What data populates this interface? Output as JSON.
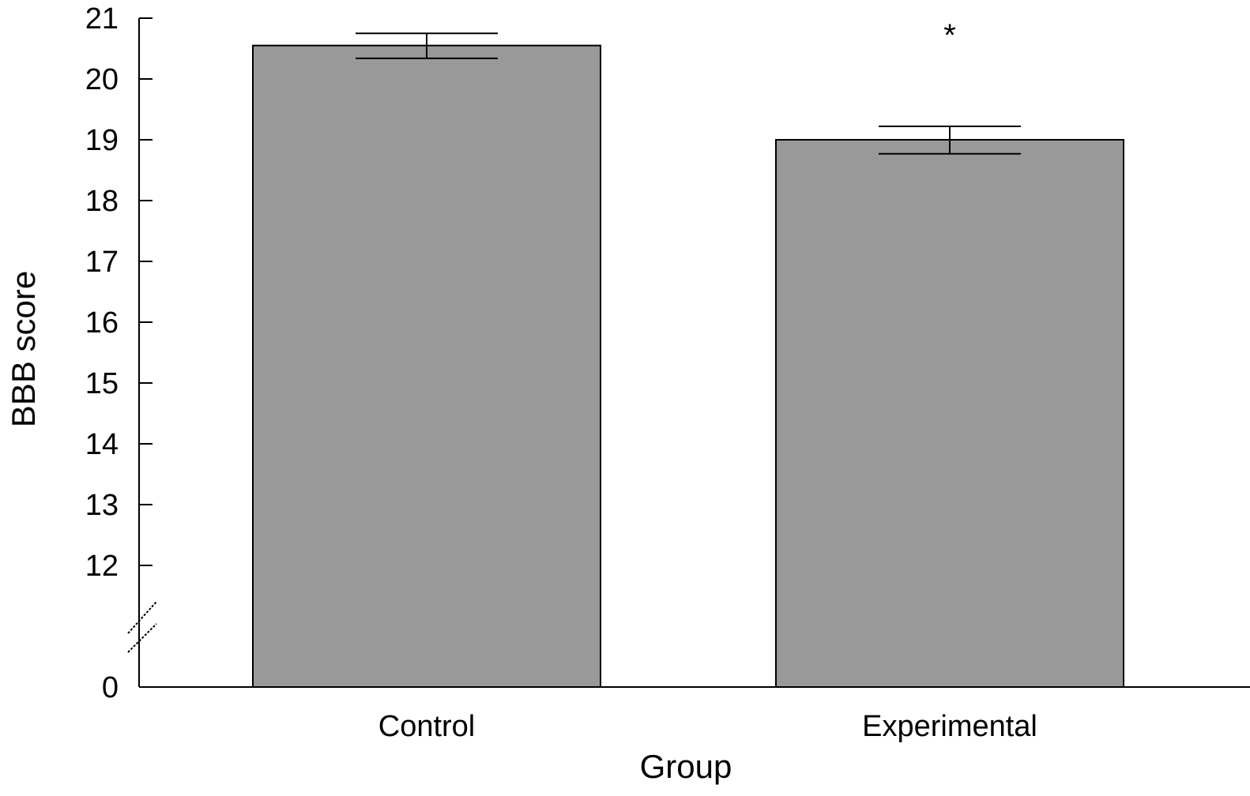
{
  "chart_data": {
    "type": "bar",
    "categories": [
      "Control",
      "Experimental"
    ],
    "values": [
      20.55,
      19.0
    ],
    "error_upper": [
      20.75,
      19.22
    ],
    "error_lower": [
      20.34,
      18.77
    ],
    "annotations": [
      "",
      "*"
    ],
    "xlabel": "Group",
    "ylabel": "BBB score",
    "yticks": [
      "0",
      "12",
      "13",
      "14",
      "15",
      "16",
      "17",
      "18",
      "19",
      "20",
      "21"
    ],
    "ylim": [
      0,
      21
    ],
    "axis_break": [
      0,
      12
    ],
    "grid": false,
    "bar_color": "#999999"
  }
}
